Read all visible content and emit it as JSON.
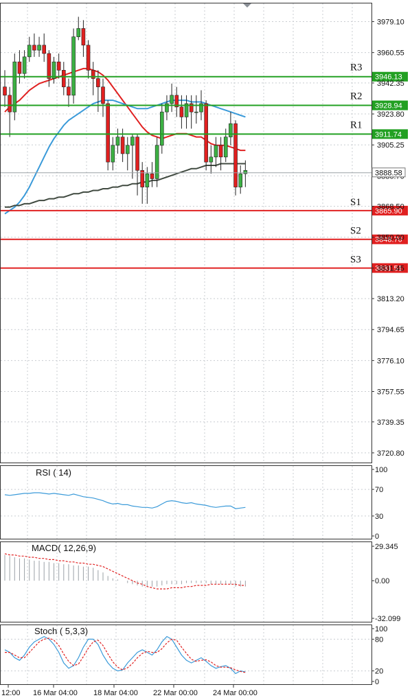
{
  "chart_data": [
    {
      "type": "candlestick",
      "price_axis": {
        "ticks": [
          "3979.10",
          "3960.55",
          "3942.35",
          "3923.80",
          "3905.25",
          "3886.70",
          "3868.50",
          "3850.00",
          "3831.45",
          "3813.20",
          "3794.65",
          "3776.10",
          "3757.55",
          "3739.35",
          "3720.80"
        ],
        "range": [
          3715,
          3990
        ]
      },
      "current_price": "3888.58",
      "levels": [
        {
          "name": "R3",
          "value": "3946.13",
          "color": "#22a022"
        },
        {
          "name": "R2",
          "value": "3928.94",
          "color": "#22a022"
        },
        {
          "name": "R1",
          "value": "3911.74",
          "color": "#22a022"
        },
        {
          "name": "S1",
          "value": "3865.90",
          "color": "#e02020"
        },
        {
          "name": "S2",
          "value": "3848.70",
          "color": "#e02020"
        },
        {
          "name": "S3",
          "value": "3831.51",
          "color": "#e02020"
        }
      ],
      "candles": [
        [
          3940,
          3935,
          3950,
          3928
        ],
        [
          3935,
          3925,
          3940,
          3910
        ],
        [
          3925,
          3955,
          3960,
          3920
        ],
        [
          3955,
          3948,
          3962,
          3942
        ],
        [
          3948,
          3958,
          3962,
          3945
        ],
        [
          3958,
          3965,
          3970,
          3955
        ],
        [
          3965,
          3962,
          3972,
          3958
        ],
        [
          3962,
          3965,
          3970,
          3958
        ],
        [
          3965,
          3960,
          3972,
          3955
        ],
        [
          3960,
          3945,
          3962,
          3940
        ],
        [
          3945,
          3955,
          3958,
          3942
        ],
        [
          3955,
          3950,
          3960,
          3945
        ],
        [
          3950,
          3940,
          3955,
          3935
        ],
        [
          3940,
          3935,
          3945,
          3928
        ],
        [
          3935,
          3970,
          3975,
          3930
        ],
        [
          3970,
          3975,
          3982,
          3968
        ],
        [
          3975,
          3965,
          3980,
          3958
        ],
        [
          3965,
          3950,
          3968,
          3945
        ],
        [
          3950,
          3945,
          3955,
          3935
        ],
        [
          3945,
          3940,
          3950,
          3925
        ],
        [
          3940,
          3930,
          3945,
          3922
        ],
        [
          3930,
          3895,
          3932,
          3890
        ],
        [
          3895,
          3905,
          3910,
          3890
        ],
        [
          3905,
          3910,
          3915,
          3900
        ],
        [
          3910,
          3900,
          3915,
          3895
        ],
        [
          3900,
          3905,
          3910,
          3890
        ],
        [
          3905,
          3910,
          3912,
          3885
        ],
        [
          3910,
          3890,
          3912,
          3875
        ],
        [
          3890,
          3880,
          3895,
          3870
        ],
        [
          3880,
          3888,
          3892,
          3870
        ],
        [
          3888,
          3885,
          3895,
          3880
        ],
        [
          3885,
          3905,
          3910,
          3880
        ],
        [
          3905,
          3925,
          3930,
          3900
        ],
        [
          3925,
          3930,
          3935,
          3920
        ],
        [
          3930,
          3935,
          3942,
          3925
        ],
        [
          3935,
          3928,
          3940,
          3922
        ],
        [
          3928,
          3922,
          3935,
          3915
        ],
        [
          3922,
          3930,
          3935,
          3915
        ],
        [
          3930,
          3925,
          3935,
          3915
        ],
        [
          3925,
          3925,
          3935,
          3918
        ],
        [
          3925,
          3930,
          3938,
          3920
        ],
        [
          3930,
          3895,
          3932,
          3890
        ],
        [
          3895,
          3898,
          3905,
          3888
        ],
        [
          3898,
          3905,
          3910,
          3892
        ],
        [
          3905,
          3898,
          3910,
          3890
        ],
        [
          3898,
          3910,
          3915,
          3895
        ],
        [
          3910,
          3918,
          3925,
          3905
        ],
        [
          3918,
          3880,
          3920,
          3875
        ],
        [
          3880,
          3888,
          3893,
          3876
        ],
        [
          3888,
          3890,
          3896,
          3880
        ]
      ],
      "moving_averages": [
        {
          "color": "#e02020",
          "values": [
            3925,
            3928,
            3930,
            3932,
            3935,
            3938,
            3940,
            3942,
            3943,
            3944,
            3945,
            3946,
            3947,
            3948,
            3949,
            3950,
            3951,
            3951,
            3950,
            3949,
            3947,
            3944,
            3940,
            3936,
            3932,
            3928,
            3924,
            3920,
            3916,
            3913,
            3911,
            3910,
            3909,
            3910,
            3911,
            3912,
            3912,
            3912,
            3911,
            3910,
            3910,
            3908,
            3906,
            3905,
            3905,
            3905,
            3904,
            3903,
            3902,
            3902
          ]
        },
        {
          "color": "#3a9ad9",
          "values": [
            3864,
            3866,
            3868,
            3871,
            3875,
            3880,
            3886,
            3892,
            3898,
            3904,
            3909,
            3913,
            3917,
            3920,
            3922,
            3924,
            3926,
            3928,
            3930,
            3931,
            3932,
            3932,
            3932,
            3931,
            3930,
            3929,
            3928,
            3927,
            3927,
            3927,
            3928,
            3929,
            3930,
            3931,
            3932,
            3932,
            3932,
            3932,
            3931,
            3931,
            3931,
            3930,
            3929,
            3928,
            3927,
            3926,
            3925,
            3924,
            3923,
            3922
          ]
        },
        {
          "color": "#404a40",
          "values": [
            3868,
            3868,
            3869,
            3869,
            3870,
            3870,
            3871,
            3872,
            3872,
            3873,
            3873,
            3874,
            3874,
            3875,
            3876,
            3876,
            3877,
            3877,
            3878,
            3878,
            3879,
            3879,
            3880,
            3880,
            3881,
            3881,
            3882,
            3882,
            3883,
            3883,
            3884,
            3884,
            3885,
            3886,
            3887,
            3888,
            3889,
            3890,
            3891,
            3891,
            3892,
            3893,
            3893,
            3893,
            3894,
            3894,
            3894,
            3894,
            3894,
            3894
          ]
        }
      ]
    },
    {
      "type": "line",
      "title": "RSI ( 14)",
      "y_ticks": [
        "100",
        "70",
        "30",
        "0"
      ],
      "ylim": [
        0,
        100
      ],
      "values": [
        62,
        61,
        62,
        63,
        64,
        64,
        65,
        65,
        64,
        63,
        64,
        63,
        62,
        61,
        63,
        61,
        59,
        58,
        57,
        55,
        53,
        50,
        48,
        49,
        47,
        47,
        45,
        44,
        43,
        43,
        42,
        44,
        48,
        52,
        53,
        52,
        50,
        49,
        50,
        48,
        47,
        46,
        44,
        43,
        44,
        45,
        45,
        41,
        42,
        43
      ]
    },
    {
      "type": "bar",
      "title": "MACD( 12,26,9)",
      "y_ticks": [
        "29.345",
        "0.00",
        "-32.099"
      ],
      "ylim": [
        -32.099,
        29.345
      ],
      "values": [
        22,
        21,
        20,
        19,
        19,
        18,
        17,
        17,
        16,
        16,
        15,
        15,
        14,
        14,
        13,
        13,
        12,
        12,
        11,
        9,
        7,
        4,
        2,
        1,
        0,
        -2,
        -3,
        -4,
        -5,
        -5,
        -5,
        -5,
        -4,
        -3,
        -3,
        -3,
        -3,
        -2,
        -2,
        -2,
        -2,
        -2,
        -3,
        -3,
        -3,
        -3,
        -3,
        -5,
        -5,
        -5
      ],
      "signal": [
        23,
        22,
        22,
        21,
        21,
        20,
        20,
        19,
        19,
        18,
        18,
        17,
        17,
        16,
        16,
        15,
        15,
        14,
        14,
        13,
        12,
        10,
        8,
        6,
        4,
        2,
        0,
        -2,
        -3,
        -5,
        -6,
        -7,
        -7,
        -7,
        -6,
        -6,
        -6,
        -5,
        -5,
        -4,
        -4,
        -4,
        -3,
        -3,
        -3,
        -3,
        -3,
        -3,
        -4,
        -4
      ]
    },
    {
      "type": "line",
      "title": "Stoch ( 5,3,3)",
      "y_ticks": [
        "100",
        "80",
        "20",
        "0"
      ],
      "ylim": [
        0,
        100
      ],
      "series": [
        {
          "values": [
            60,
            55,
            45,
            40,
            50,
            65,
            75,
            80,
            85,
            80,
            70,
            55,
            35,
            25,
            30,
            45,
            65,
            80,
            80,
            70,
            50,
            35,
            25,
            20,
            22,
            35,
            45,
            55,
            60,
            55,
            50,
            60,
            75,
            85,
            80,
            65,
            50,
            40,
            35,
            40,
            45,
            38,
            30,
            25,
            28,
            30,
            25,
            15,
            20,
            18
          ]
        },
        {
          "values": [
            55,
            55,
            50,
            45,
            45,
            55,
            65,
            75,
            80,
            82,
            78,
            68,
            52,
            38,
            30,
            33,
            47,
            63,
            75,
            78,
            68,
            52,
            37,
            27,
            22,
            26,
            34,
            45,
            53,
            57,
            55,
            55,
            62,
            73,
            80,
            78,
            65,
            53,
            42,
            38,
            40,
            41,
            37,
            30,
            27,
            27,
            26,
            22,
            19,
            17
          ]
        }
      ]
    }
  ],
  "x_axis": {
    "labels": [
      "12:00",
      "16 Mar 04:00",
      "18 Mar 04:00",
      "22 Mar 00:00",
      "24 Mar 00:00"
    ]
  }
}
